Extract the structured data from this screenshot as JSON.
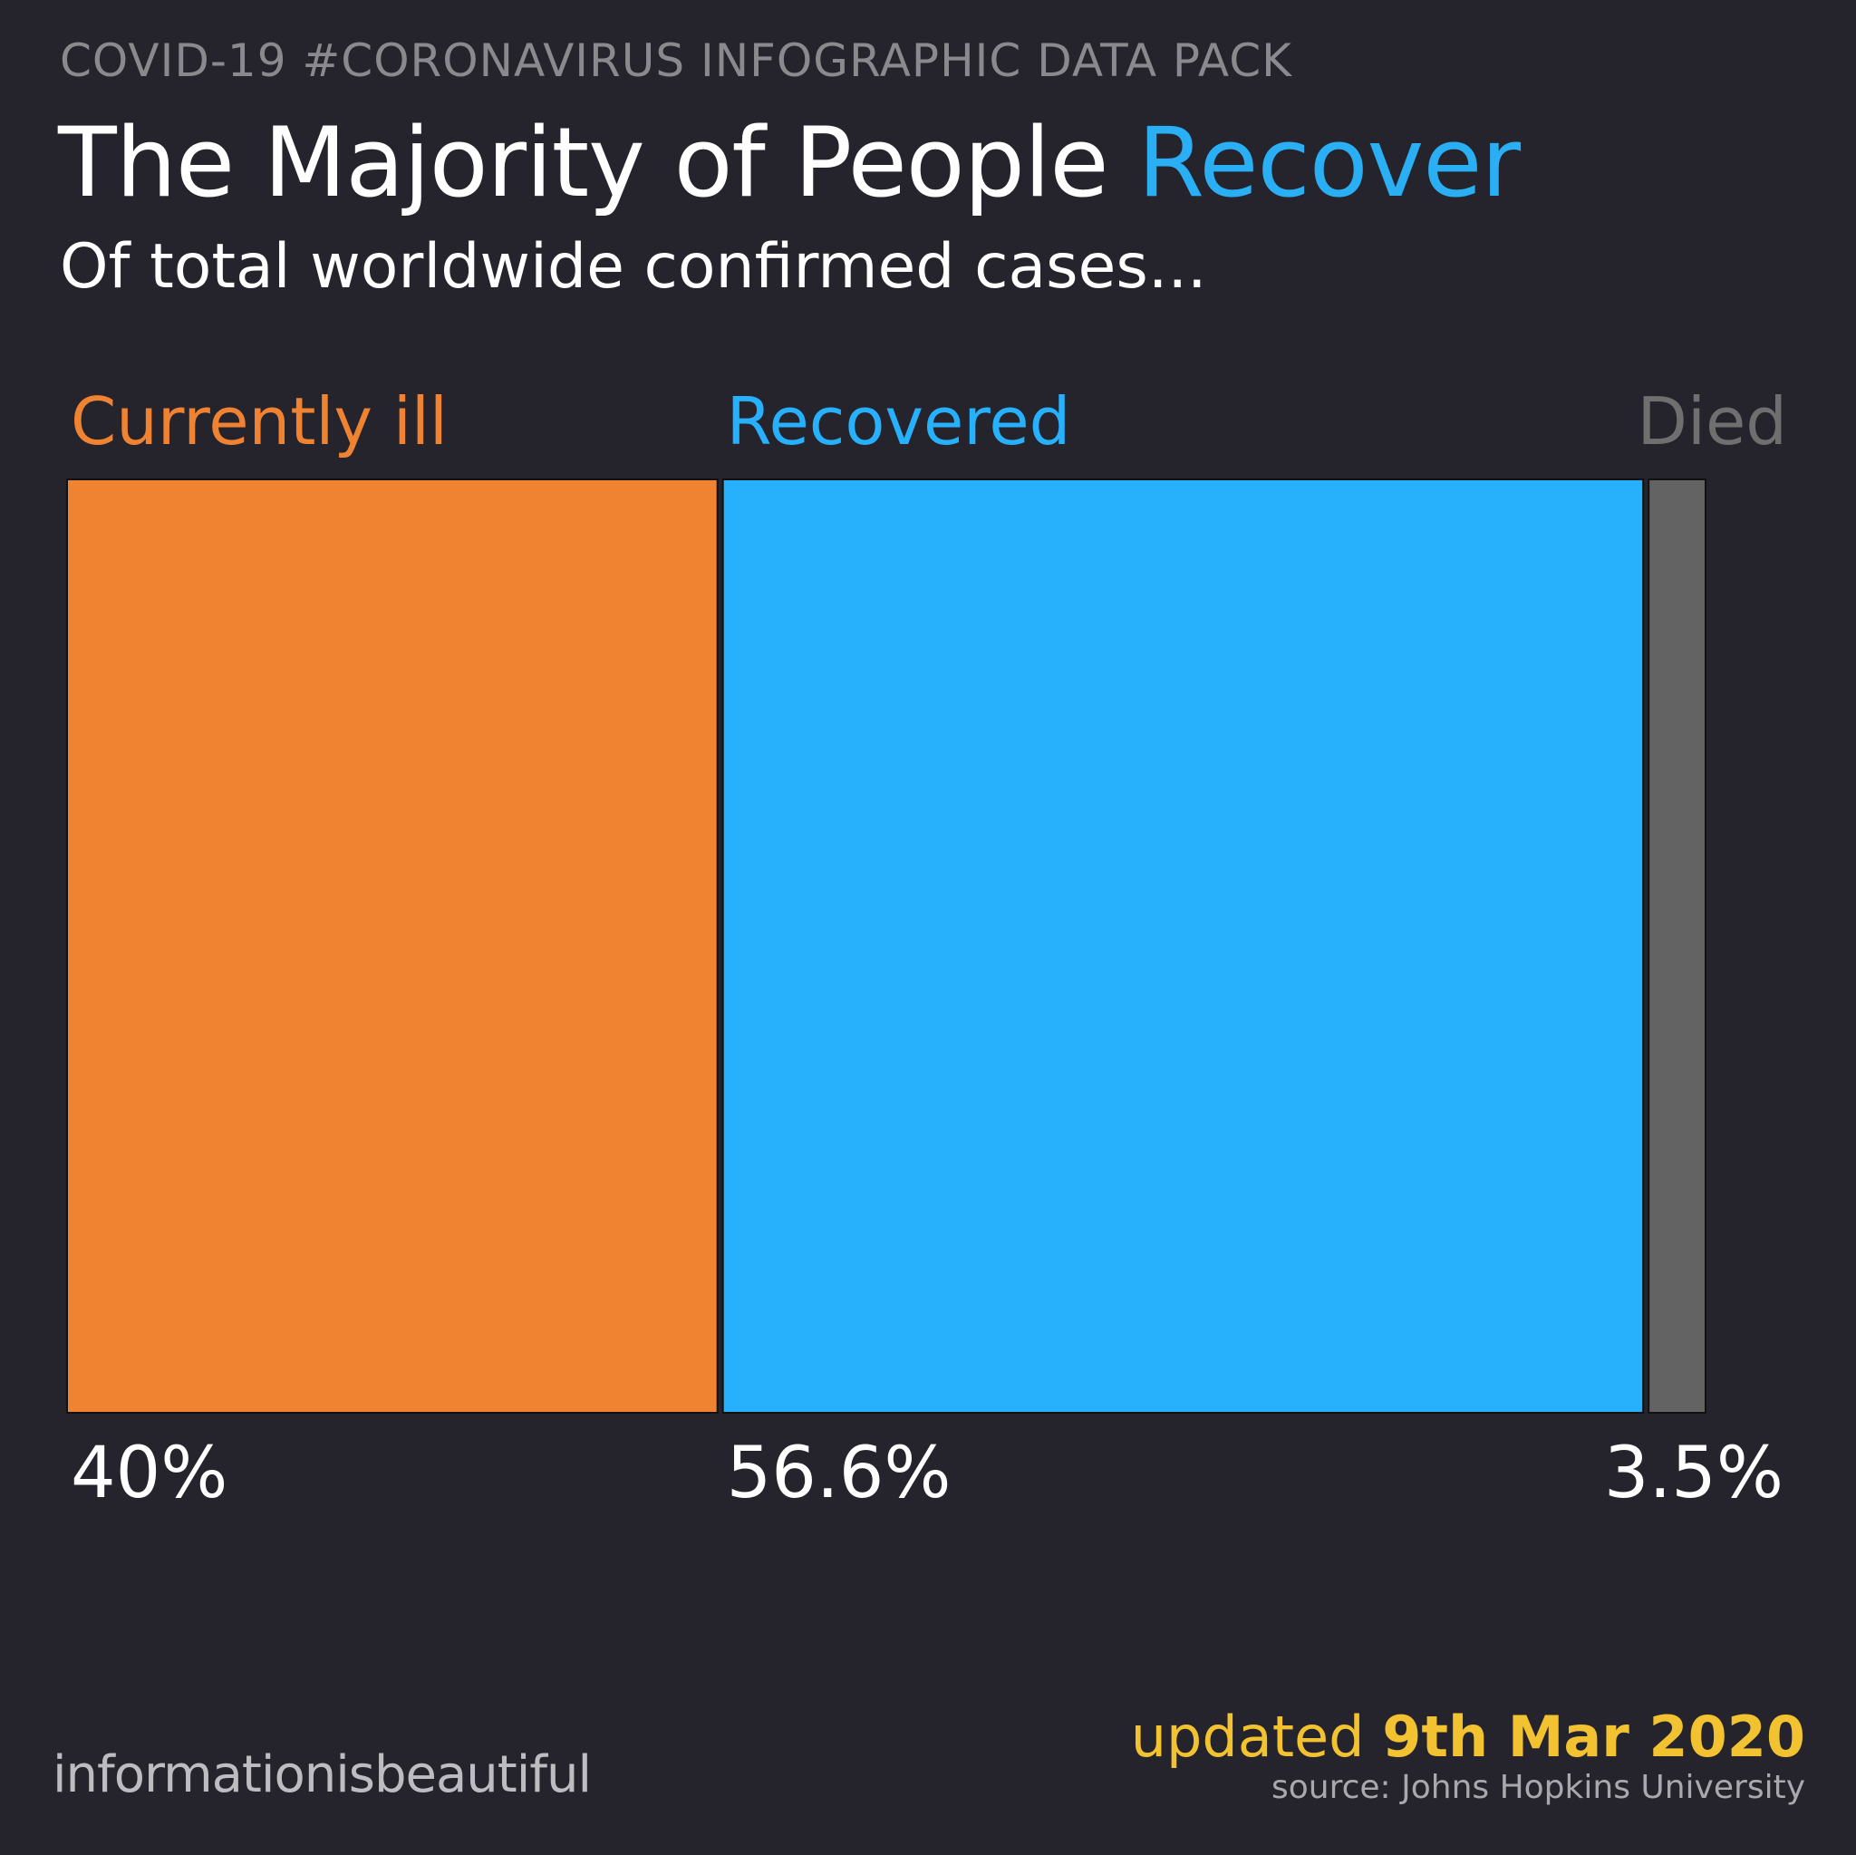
{
  "header": {
    "kicker": "COVID-19 #CORONAVIRUS INFOGRAPHIC DATA PACK",
    "title_main": "The Majority of People",
    "title_accent": "Recover",
    "subtitle": "Of total worldwide confirmed cases..."
  },
  "chart_data": {
    "type": "bar",
    "title": "The Majority of People Recover",
    "subtitle": "Of total worldwide confirmed cases...",
    "orientation": "stacked-horizontal",
    "categories": [
      "Currently ill",
      "Recovered",
      "Died"
    ],
    "values": [
      40,
      56.6,
      3.5
    ],
    "value_labels": [
      "40%",
      "56.6%",
      "3.5%"
    ],
    "unit": "%",
    "colors": [
      "#f08331",
      "#27b0fb",
      "#636363"
    ],
    "label_colors": [
      "#f08331",
      "#27b0fb",
      "#6f6f6f"
    ],
    "xlabel": "",
    "ylabel": "",
    "grid": false,
    "legend": "none"
  },
  "footer": {
    "brand": "informationisbeautiful",
    "updated_prefix": "updated",
    "updated_date": "9th Mar 2020",
    "source": "source: Johns Hopkins University"
  },
  "colors": {
    "background": "#25242d",
    "accent": "#2aaff5",
    "updated": "#f2c230"
  }
}
